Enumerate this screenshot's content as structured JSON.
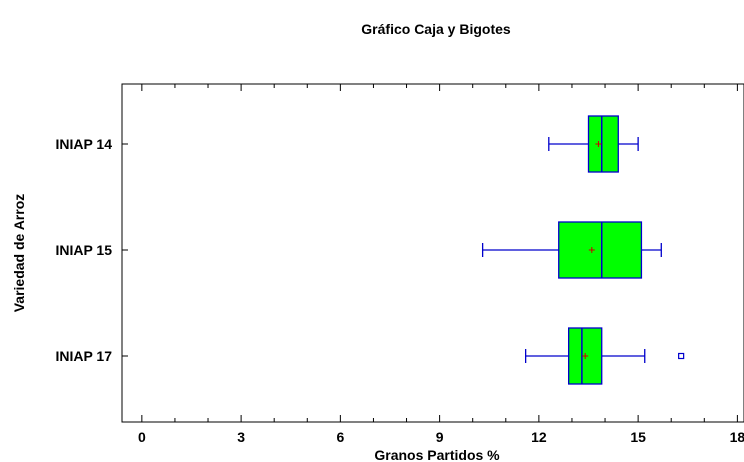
{
  "chart_data": {
    "type": "boxplot",
    "title": "Gráfico Caja y Bigotes",
    "xlabel": "Granos Partidos %",
    "ylabel": "Variedad de Arroz",
    "xlim": [
      -0.6,
      18.2
    ],
    "xticks": [
      0,
      3,
      6,
      9,
      12,
      15,
      18
    ],
    "orientation": "horizontal",
    "grid": false,
    "colors": {
      "box_fill": "#00ff00",
      "box_stroke": "#0000cc",
      "mean_marker": "#cc0000",
      "outlier": "#0000cc"
    },
    "groups": [
      {
        "label": "INIAP 14",
        "whisker_low": 12.3,
        "q1": 13.5,
        "median": 13.9,
        "q3": 14.4,
        "whisker_high": 15.0,
        "mean": 13.8,
        "outliers": []
      },
      {
        "label": "INIAP 15",
        "whisker_low": 10.3,
        "q1": 12.6,
        "median": 13.9,
        "q3": 15.1,
        "whisker_high": 15.7,
        "mean": 13.6,
        "outliers": []
      },
      {
        "label": "INIAP 17",
        "whisker_low": 11.6,
        "q1": 12.9,
        "median": 13.3,
        "q3": 13.9,
        "whisker_high": 15.2,
        "mean": 13.4,
        "outliers": [
          16.3
        ]
      }
    ]
  }
}
